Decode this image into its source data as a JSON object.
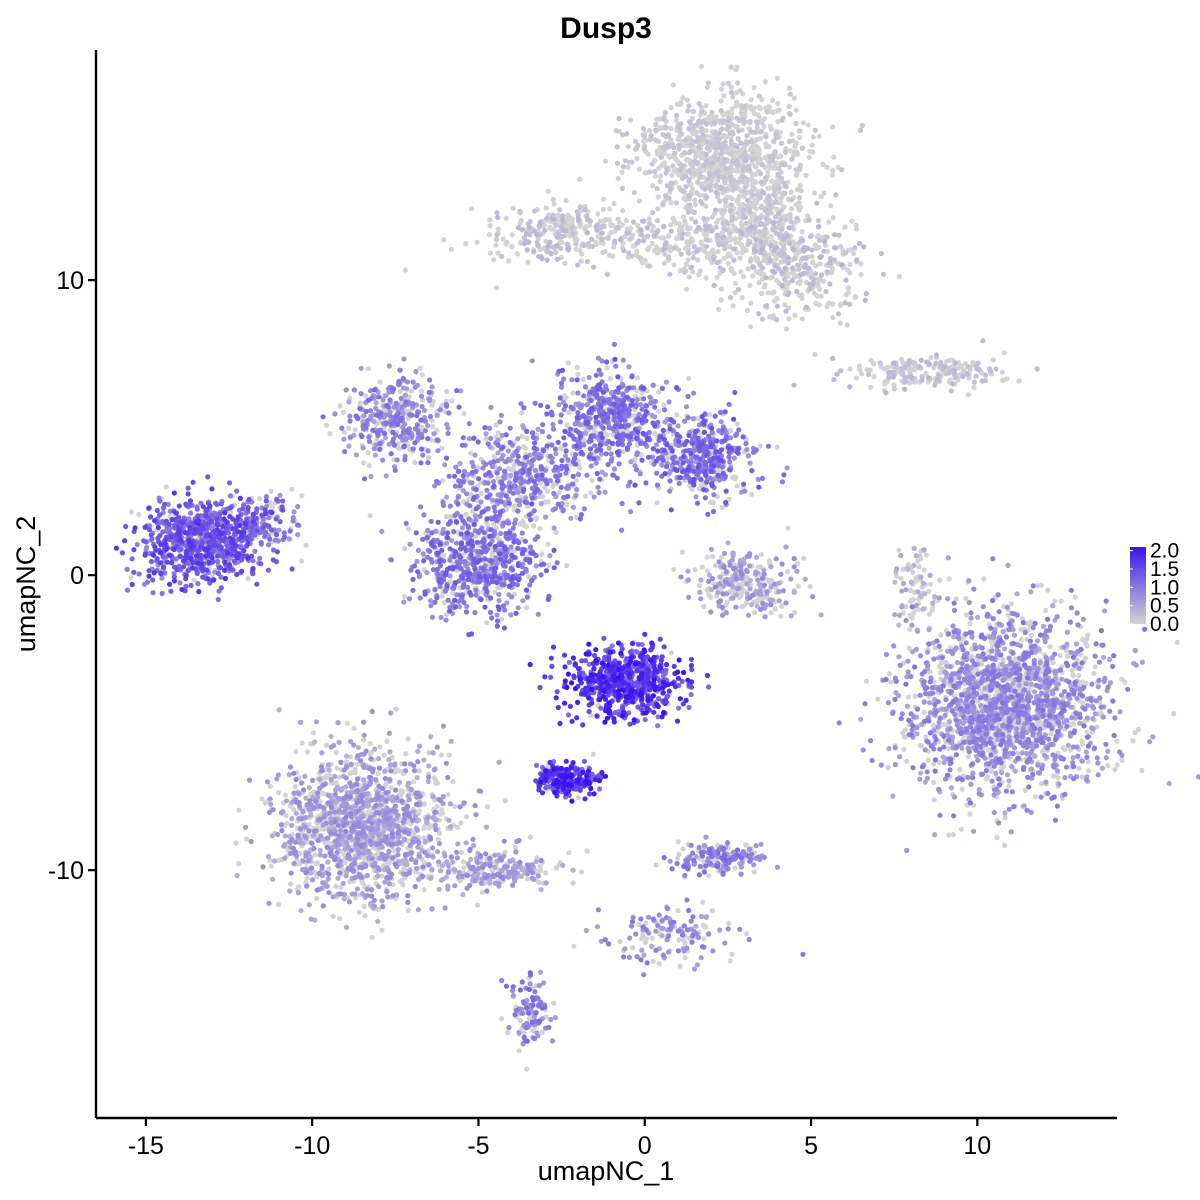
{
  "chart_data": {
    "type": "scatter",
    "title": "Dusp3",
    "xlabel": "umapNC_1",
    "ylabel": "umapNC_2",
    "xlim": [
      -16.5,
      14.2
    ],
    "ylim": [
      -18.4,
      17.8
    ],
    "x_ticks": [
      -15,
      -10,
      -5,
      0,
      5,
      10
    ],
    "y_ticks": [
      -10,
      0,
      10
    ],
    "x_tick_labels": [
      "-15",
      "-10",
      "-5",
      "0",
      "5",
      "10"
    ],
    "y_tick_labels": [
      "-10",
      "0",
      "10"
    ],
    "grid": false,
    "legend_position": "right",
    "color_scale": {
      "low_color": "#d3d3d3",
      "high_color": "#3a14f0",
      "min": 0.0,
      "max": 2.1,
      "ticks": [
        0.0,
        0.5,
        1.0,
        1.5,
        2.0
      ],
      "tick_labels": [
        "0.0",
        "0.5",
        "1.0",
        "1.5",
        "2.0"
      ]
    },
    "clusters": [
      {
        "name": "cluster-top",
        "cx": 2.3,
        "cy": 14.3,
        "sx": 1.3,
        "sy": 1.0,
        "n": 900,
        "mean_expr": 0.15
      },
      {
        "name": "cluster-top-arm-left",
        "cx": -2.5,
        "cy": 11.6,
        "sx": 1.2,
        "sy": 0.45,
        "n": 260,
        "mean_expr": 0.25
      },
      {
        "name": "cluster-top-arm-mid",
        "cx": 1.5,
        "cy": 11.3,
        "sx": 1.5,
        "sy": 0.5,
        "n": 280,
        "mean_expr": 0.2
      },
      {
        "name": "cluster-top-arm-right",
        "cx": 4.5,
        "cy": 10.5,
        "sx": 1.0,
        "sy": 0.9,
        "n": 360,
        "mean_expr": 0.25
      },
      {
        "name": "cluster-top-stem",
        "cx": 3.4,
        "cy": 12.3,
        "sx": 0.7,
        "sy": 0.8,
        "n": 250,
        "mean_expr": 0.15
      },
      {
        "name": "cluster-right-band",
        "cx": 8.5,
        "cy": 6.9,
        "sx": 1.2,
        "sy": 0.28,
        "n": 200,
        "mean_expr": 0.25
      },
      {
        "name": "cluster-star-left-lobe",
        "cx": -7.4,
        "cy": 5.3,
        "sx": 0.8,
        "sy": 0.7,
        "n": 360,
        "mean_expr": 0.85
      },
      {
        "name": "cluster-star-center",
        "cx": -3.5,
        "cy": 3.4,
        "sx": 1.2,
        "sy": 0.9,
        "n": 480,
        "mean_expr": 0.9
      },
      {
        "name": "cluster-star-top-lobe",
        "cx": -1.0,
        "cy": 5.3,
        "sx": 0.8,
        "sy": 0.8,
        "n": 500,
        "mean_expr": 1.0
      },
      {
        "name": "cluster-star-right-lobe",
        "cx": 1.8,
        "cy": 4.0,
        "sx": 0.8,
        "sy": 0.7,
        "n": 440,
        "mean_expr": 1.05
      },
      {
        "name": "cluster-star-bottom-lobe",
        "cx": -5.0,
        "cy": 0.5,
        "sx": 1.0,
        "sy": 0.9,
        "n": 640,
        "mean_expr": 1.0
      },
      {
        "name": "cluster-left-blob",
        "cx": -13.3,
        "cy": 1.1,
        "sx": 0.9,
        "sy": 0.7,
        "n": 780,
        "mean_expr": 1.25
      },
      {
        "name": "cluster-left-blob-arm",
        "cx": -11.5,
        "cy": 1.7,
        "sx": 0.6,
        "sy": 0.5,
        "n": 120,
        "mean_expr": 1.0
      },
      {
        "name": "cluster-small-mid",
        "cx": 3.0,
        "cy": -0.3,
        "sx": 0.8,
        "sy": 0.5,
        "n": 260,
        "mean_expr": 0.6
      },
      {
        "name": "cluster-thin-strand",
        "cx": 8.2,
        "cy": -0.5,
        "sx": 0.3,
        "sy": 0.8,
        "n": 80,
        "mean_expr": 0.4
      },
      {
        "name": "cluster-right-big",
        "cx": 10.8,
        "cy": -4.4,
        "sx": 1.5,
        "sy": 1.5,
        "n": 2000,
        "mean_expr": 0.75
      },
      {
        "name": "cluster-center-dense",
        "cx": -0.6,
        "cy": -3.6,
        "sx": 0.8,
        "sy": 0.6,
        "n": 650,
        "mean_expr": 1.55
      },
      {
        "name": "cluster-center-tail",
        "cx": -2.4,
        "cy": -6.9,
        "sx": 0.45,
        "sy": 0.25,
        "n": 240,
        "mean_expr": 1.6
      },
      {
        "name": "cluster-bottom-left",
        "cx": -8.5,
        "cy": -8.5,
        "sx": 1.3,
        "sy": 1.3,
        "n": 1500,
        "mean_expr": 0.6
      },
      {
        "name": "cluster-bottom-left-tail",
        "cx": -4.5,
        "cy": -10.0,
        "sx": 1.0,
        "sy": 0.35,
        "n": 220,
        "mean_expr": 0.6
      },
      {
        "name": "cluster-bottom-strand",
        "cx": -3.5,
        "cy": -14.7,
        "sx": 0.3,
        "sy": 0.6,
        "n": 110,
        "mean_expr": 0.9
      },
      {
        "name": "cluster-bottom-mid",
        "cx": 2.2,
        "cy": -9.6,
        "sx": 0.65,
        "sy": 0.25,
        "n": 170,
        "mean_expr": 0.85
      },
      {
        "name": "cluster-lower-branch",
        "cx": 0.8,
        "cy": -12.2,
        "sx": 1.0,
        "sy": 0.5,
        "n": 140,
        "mean_expr": 0.75
      }
    ]
  }
}
